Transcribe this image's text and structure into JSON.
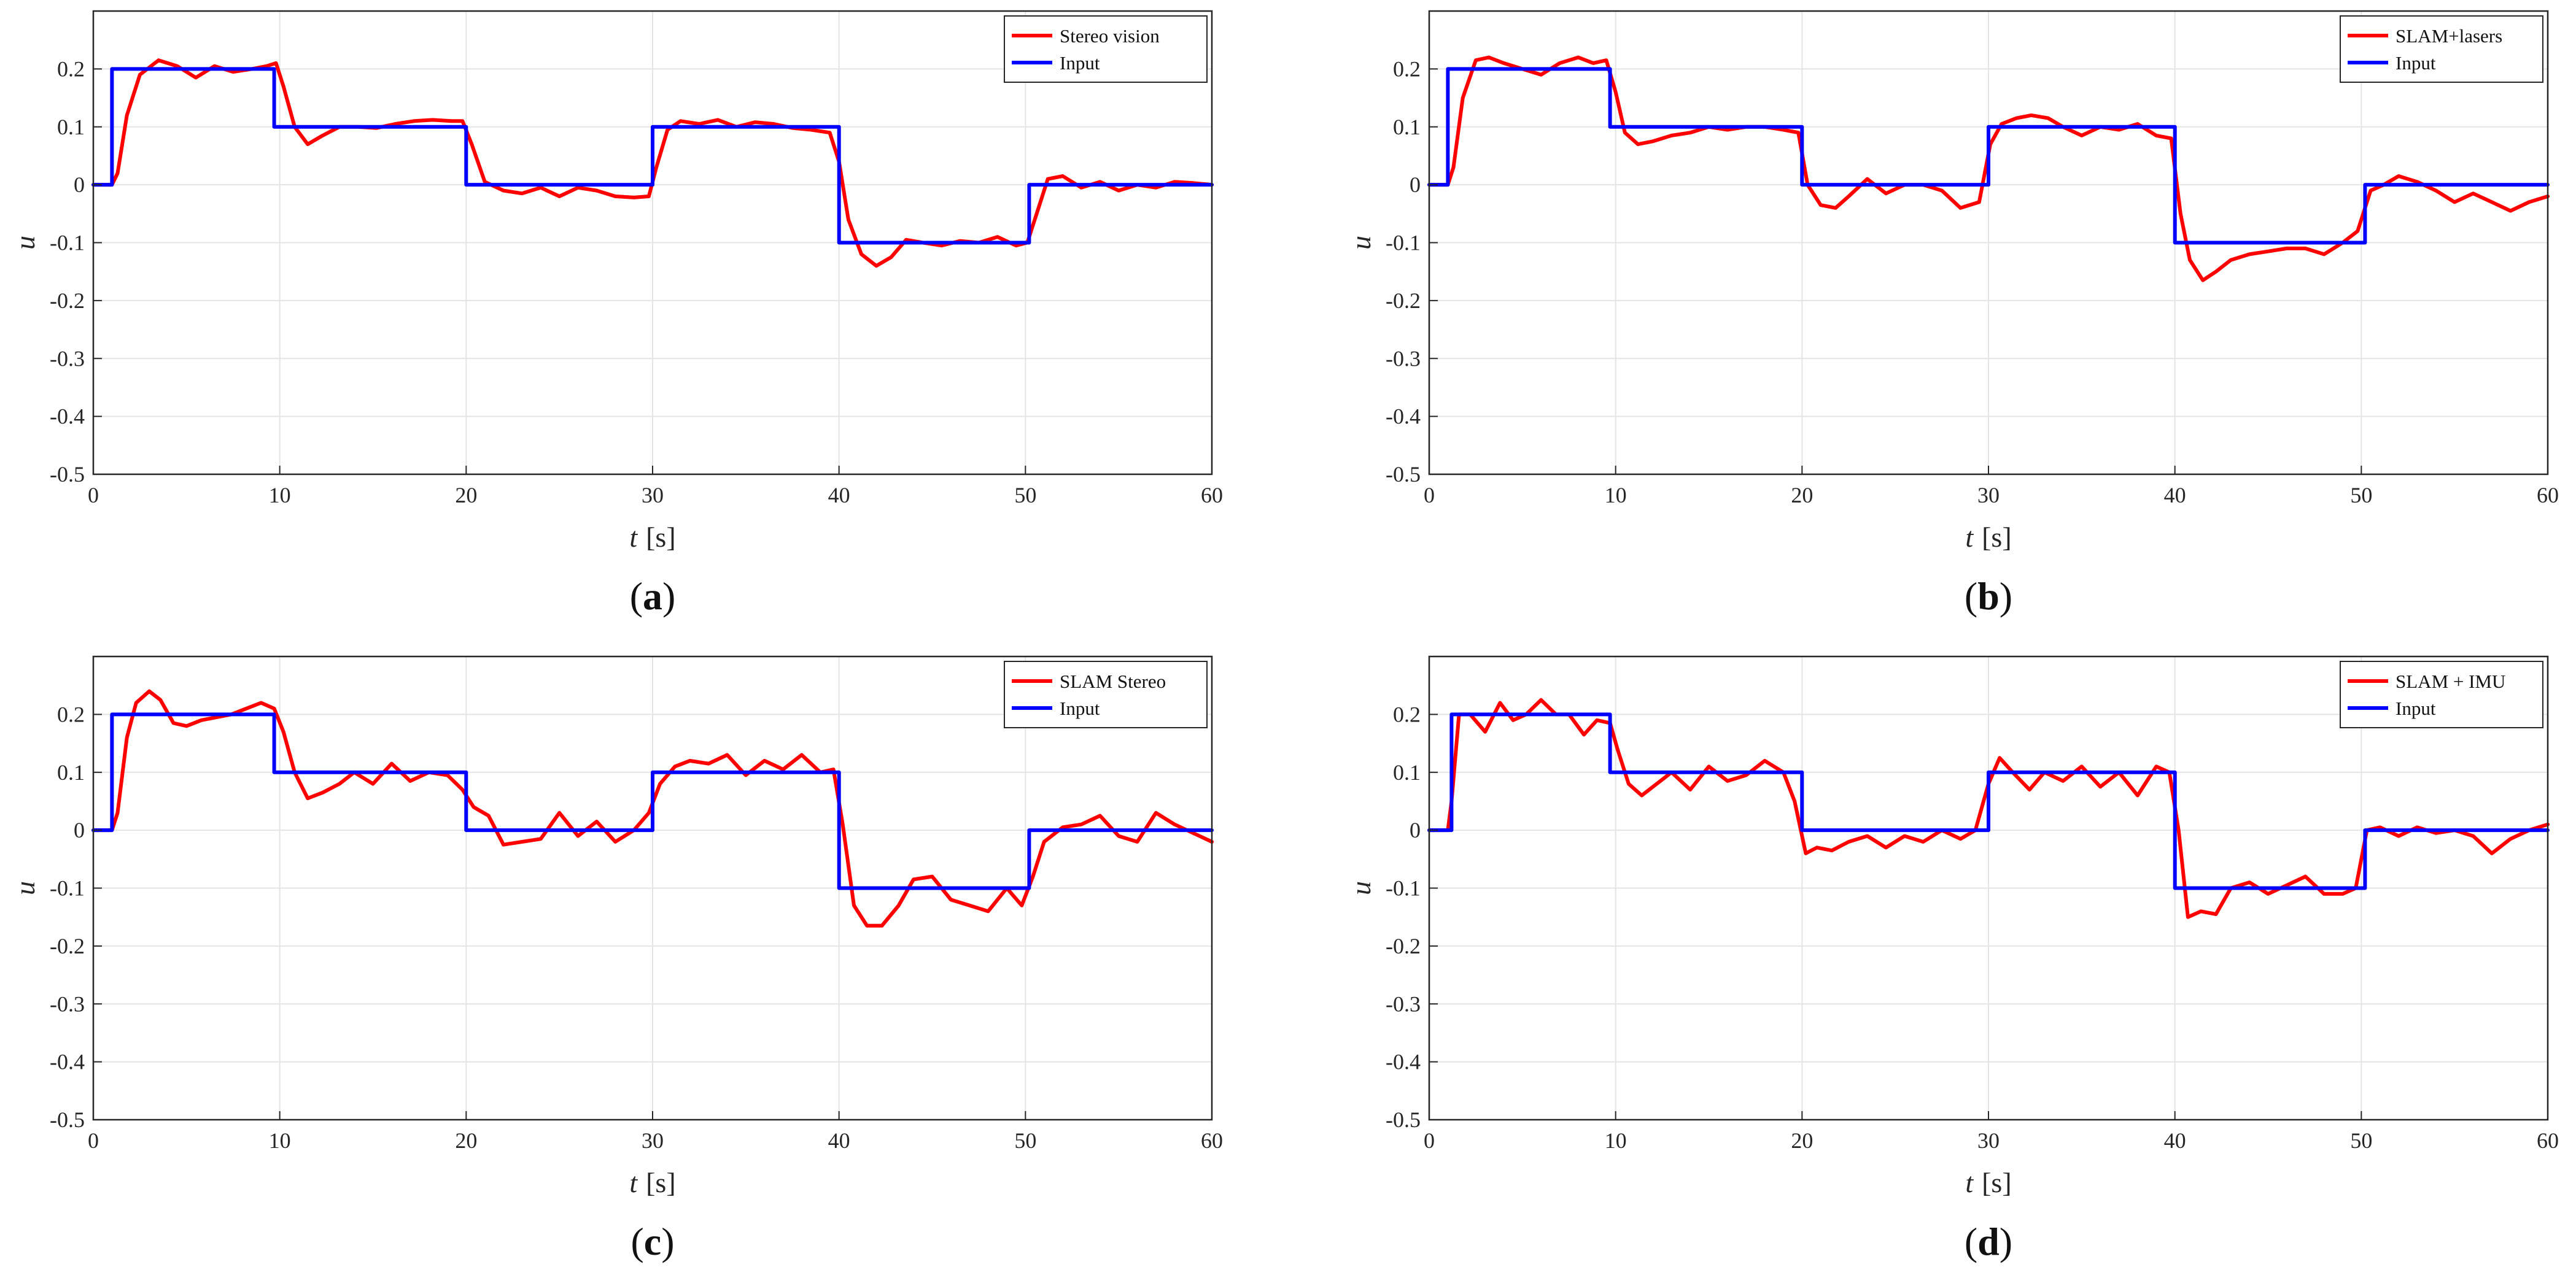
{
  "chart_data": [
    {
      "type": "line",
      "caption": {
        "open": "(",
        "letter": "a",
        "close": ")"
      },
      "xlabel": {
        "var": "t",
        "unit": "[s]"
      },
      "ylabel": "u",
      "xlim": [
        0,
        60
      ],
      "ylim": [
        -0.5,
        0.3
      ],
      "xticks": [
        0,
        10,
        20,
        30,
        40,
        50,
        60
      ],
      "xtick_labels": [
        "0",
        "10",
        "20",
        "30",
        "40",
        "50",
        "60"
      ],
      "yticks": [
        0.2,
        0.1,
        0,
        -0.1,
        -0.2,
        -0.3,
        -0.4,
        -0.5
      ],
      "ytick_labels": [
        "0.2",
        "0.1",
        "0",
        "-0.1",
        "-0.2",
        "-0.3",
        "-0.4",
        "-0.5"
      ],
      "grid": true,
      "legend_position": "top-right",
      "series": [
        {
          "name": "Stereo vision",
          "color": "#ff0000",
          "x": [
            0,
            1,
            1.3,
            1.8,
            2.5,
            3.5,
            4.5,
            5.5,
            6.5,
            7.5,
            8.5,
            9.3,
            9.8,
            10.2,
            10.8,
            11.5,
            12.3,
            13.2,
            14.2,
            15.2,
            16.2,
            17.2,
            18.2,
            19.2,
            19.8,
            20.3,
            21,
            22,
            23,
            24,
            25,
            26,
            27,
            28,
            29,
            29.8,
            30.2,
            30.8,
            31.5,
            32.5,
            33.5,
            34.5,
            35.5,
            36.5,
            37.5,
            38.5,
            39.5,
            40,
            40.5,
            41.2,
            42,
            42.8,
            43.6,
            44.5,
            45.5,
            46.5,
            47.5,
            48.5,
            49.5,
            50.1,
            50.6,
            51.2,
            52,
            53,
            54,
            55,
            56,
            57,
            58,
            59,
            60
          ],
          "y": [
            0,
            0,
            0.02,
            0.12,
            0.19,
            0.215,
            0.205,
            0.185,
            0.205,
            0.195,
            0.2,
            0.205,
            0.21,
            0.17,
            0.1,
            0.07,
            0.085,
            0.1,
            0.1,
            0.098,
            0.105,
            0.11,
            0.112,
            0.11,
            0.11,
            0.07,
            0.005,
            -0.01,
            -0.015,
            -0.005,
            -0.02,
            -0.005,
            -0.01,
            -0.02,
            -0.022,
            -0.02,
            0.03,
            0.095,
            0.11,
            0.105,
            0.112,
            0.1,
            0.108,
            0.105,
            0.098,
            0.095,
            0.09,
            0.04,
            -0.06,
            -0.12,
            -0.14,
            -0.125,
            -0.095,
            -0.1,
            -0.105,
            -0.097,
            -0.1,
            -0.09,
            -0.105,
            -0.1,
            -0.05,
            0.01,
            0.015,
            -0.005,
            0.005,
            -0.01,
            0.0,
            -0.005,
            0.005,
            0.003,
            0.0
          ]
        },
        {
          "name": "Input",
          "color": "#0000ff",
          "x": [
            0,
            1,
            1,
            9.7,
            9.7,
            20,
            20,
            30,
            30,
            40,
            40,
            50.2,
            50.2,
            60
          ],
          "y": [
            0,
            0,
            0.2,
            0.2,
            0.1,
            0.1,
            0,
            0,
            0.1,
            0.1,
            -0.1,
            -0.1,
            0,
            0
          ]
        }
      ]
    },
    {
      "type": "line",
      "caption": {
        "open": "(",
        "letter": "b",
        "close": ")"
      },
      "xlabel": {
        "var": "t",
        "unit": "[s]"
      },
      "ylabel": "u",
      "xlim": [
        0,
        60
      ],
      "ylim": [
        -0.5,
        0.3
      ],
      "xticks": [
        0,
        10,
        20,
        30,
        40,
        50,
        60
      ],
      "xtick_labels": [
        "0",
        "10",
        "20",
        "30",
        "40",
        "50",
        "60"
      ],
      "yticks": [
        0.2,
        0.1,
        0,
        -0.1,
        -0.2,
        -0.3,
        -0.4,
        -0.5
      ],
      "ytick_labels": [
        "0.2",
        "0.1",
        "0",
        "-0.1",
        "-0.2",
        "-0.3",
        "-0.4",
        "-0.5"
      ],
      "grid": true,
      "legend_position": "top-right",
      "series": [
        {
          "name": "SLAM+lasers",
          "color": "#ff0000",
          "x": [
            0,
            1,
            1.3,
            1.8,
            2.5,
            3.2,
            4,
            5,
            6,
            7,
            8,
            8.8,
            9.5,
            10,
            10.5,
            11.2,
            12,
            13,
            14,
            15,
            16,
            17,
            18,
            19,
            19.8,
            20.3,
            21,
            21.8,
            22.5,
            23.5,
            24.5,
            25.5,
            26.5,
            27.5,
            28.5,
            29.5,
            30.1,
            30.7,
            31.5,
            32.3,
            33.2,
            34,
            35,
            36,
            37,
            38,
            39,
            39.8,
            40.3,
            40.8,
            41.5,
            42.2,
            43,
            44,
            45,
            46,
            47,
            48,
            49,
            49.8,
            50.5,
            51.2,
            52,
            53,
            54,
            55,
            56,
            57,
            58,
            59,
            60
          ],
          "y": [
            0,
            0,
            0.03,
            0.15,
            0.215,
            0.22,
            0.21,
            0.2,
            0.19,
            0.21,
            0.22,
            0.21,
            0.215,
            0.16,
            0.09,
            0.07,
            0.075,
            0.085,
            0.09,
            0.1,
            0.095,
            0.1,
            0.1,
            0.095,
            0.09,
            0.0,
            -0.035,
            -0.04,
            -0.02,
            0.01,
            -0.015,
            0.0,
            0.0,
            -0.01,
            -0.04,
            -0.03,
            0.07,
            0.105,
            0.115,
            0.12,
            0.115,
            0.1,
            0.085,
            0.1,
            0.095,
            0.105,
            0.085,
            0.08,
            -0.05,
            -0.13,
            -0.165,
            -0.15,
            -0.13,
            -0.12,
            -0.115,
            -0.11,
            -0.11,
            -0.12,
            -0.1,
            -0.08,
            -0.01,
            0.0,
            0.015,
            0.005,
            -0.01,
            -0.03,
            -0.015,
            -0.03,
            -0.045,
            -0.03,
            -0.02
          ]
        },
        {
          "name": "Input",
          "color": "#0000ff",
          "x": [
            0,
            1,
            1,
            9.7,
            9.7,
            20,
            20,
            30,
            30,
            40,
            40,
            50.2,
            50.2,
            60
          ],
          "y": [
            0,
            0,
            0.2,
            0.2,
            0.1,
            0.1,
            0,
            0,
            0.1,
            0.1,
            -0.1,
            -0.1,
            0,
            0
          ]
        }
      ]
    },
    {
      "type": "line",
      "caption": {
        "open": "(",
        "letter": "c",
        "close": ")"
      },
      "xlabel": {
        "var": "t",
        "unit": "[s]"
      },
      "ylabel": "u",
      "xlim": [
        0,
        60
      ],
      "ylim": [
        -0.5,
        0.3
      ],
      "xticks": [
        0,
        10,
        20,
        30,
        40,
        50,
        60
      ],
      "xtick_labels": [
        "0",
        "10",
        "20",
        "30",
        "40",
        "50",
        "60"
      ],
      "yticks": [
        0.2,
        0.1,
        0,
        -0.1,
        -0.2,
        -0.3,
        -0.4,
        -0.5
      ],
      "ytick_labels": [
        "0.2",
        "0.1",
        "0",
        "-0.1",
        "-0.2",
        "-0.3",
        "-0.4",
        "-0.5"
      ],
      "grid": true,
      "legend_position": "top-right",
      "series": [
        {
          "name": "SLAM Stereo",
          "color": "#ff0000",
          "x": [
            0,
            1,
            1.3,
            1.8,
            2.3,
            3,
            3.6,
            4.3,
            5,
            5.8,
            6.6,
            7.4,
            8.2,
            9,
            9.7,
            10.2,
            10.8,
            11.5,
            12.3,
            13.2,
            14,
            15,
            16,
            17,
            18,
            19,
            19.8,
            20.4,
            21.2,
            22,
            23,
            24,
            25,
            26,
            27,
            28,
            29,
            29.8,
            30.4,
            31.2,
            32,
            33,
            34,
            35,
            36,
            37,
            38,
            39,
            39.7,
            40.2,
            40.8,
            41.5,
            42.3,
            43.2,
            44,
            45,
            46,
            47,
            48,
            49,
            49.8,
            50.4,
            51,
            52,
            53,
            54,
            55,
            56,
            57,
            58,
            59,
            60
          ],
          "y": [
            0,
            0,
            0.03,
            0.16,
            0.22,
            0.24,
            0.225,
            0.185,
            0.18,
            0.19,
            0.195,
            0.2,
            0.21,
            0.22,
            0.21,
            0.17,
            0.1,
            0.055,
            0.065,
            0.08,
            0.1,
            0.08,
            0.115,
            0.085,
            0.1,
            0.095,
            0.07,
            0.04,
            0.025,
            -0.025,
            -0.02,
            -0.015,
            0.03,
            -0.01,
            0.015,
            -0.02,
            0.0,
            0.03,
            0.08,
            0.11,
            0.12,
            0.115,
            0.13,
            0.095,
            0.12,
            0.105,
            0.13,
            0.1,
            0.105,
            0.01,
            -0.13,
            -0.165,
            -0.165,
            -0.13,
            -0.085,
            -0.08,
            -0.12,
            -0.13,
            -0.14,
            -0.1,
            -0.13,
            -0.08,
            -0.02,
            0.005,
            0.01,
            0.025,
            -0.01,
            -0.02,
            0.03,
            0.01,
            -0.005,
            -0.02
          ]
        },
        {
          "name": "Input",
          "color": "#0000ff",
          "x": [
            0,
            1,
            1,
            9.7,
            9.7,
            20,
            20,
            30,
            30,
            40,
            40,
            50.2,
            50.2,
            60
          ],
          "y": [
            0,
            0,
            0.2,
            0.2,
            0.1,
            0.1,
            0,
            0,
            0.1,
            0.1,
            -0.1,
            -0.1,
            0,
            0
          ]
        }
      ]
    },
    {
      "type": "line",
      "caption": {
        "open": "(",
        "letter": "d",
        "close": ")"
      },
      "xlabel": {
        "var": "t",
        "unit": "[s]"
      },
      "ylabel": "u",
      "xlim": [
        0,
        60
      ],
      "ylim": [
        -0.5,
        0.3
      ],
      "xticks": [
        0,
        10,
        20,
        30,
        40,
        50,
        60
      ],
      "xtick_labels": [
        "0",
        "10",
        "20",
        "30",
        "40",
        "50",
        "60"
      ],
      "yticks": [
        0.2,
        0.1,
        0,
        -0.1,
        -0.2,
        -0.3,
        -0.4,
        -0.5
      ],
      "ytick_labels": [
        "0.2",
        "0.1",
        "0",
        "-0.1",
        "-0.2",
        "-0.3",
        "-0.4",
        "-0.5"
      ],
      "grid": true,
      "legend_position": "top-right",
      "series": [
        {
          "name": "SLAM + IMU",
          "color": "#ff0000",
          "x": [
            0,
            1,
            1.2,
            1.6,
            2.2,
            3,
            3.8,
            4.5,
            5.2,
            6,
            6.8,
            7.5,
            8.3,
            9,
            9.7,
            10.1,
            10.7,
            11.4,
            12.2,
            13,
            14,
            15,
            16,
            17,
            18,
            19,
            19.6,
            20.2,
            20.8,
            21.6,
            22.5,
            23.5,
            24.5,
            25.5,
            26.5,
            27.5,
            28.5,
            29.3,
            30,
            30.6,
            31.3,
            32.2,
            33,
            34,
            35,
            36,
            37,
            38,
            39,
            39.7,
            40.2,
            40.7,
            41.4,
            42.2,
            43,
            44,
            45,
            46,
            47,
            48,
            49,
            49.7,
            50.3,
            51,
            52,
            53,
            54,
            55,
            56,
            57,
            58,
            59,
            60
          ],
          "y": [
            0,
            0,
            0.05,
            0.2,
            0.2,
            0.17,
            0.22,
            0.19,
            0.2,
            0.225,
            0.2,
            0.2,
            0.165,
            0.19,
            0.185,
            0.14,
            0.08,
            0.06,
            0.08,
            0.1,
            0.07,
            0.11,
            0.085,
            0.095,
            0.12,
            0.1,
            0.05,
            -0.04,
            -0.03,
            -0.035,
            -0.02,
            -0.01,
            -0.03,
            -0.01,
            -0.02,
            0.0,
            -0.015,
            0.0,
            0.08,
            0.125,
            0.1,
            0.07,
            0.1,
            0.085,
            0.11,
            0.075,
            0.1,
            0.06,
            0.11,
            0.1,
            0.0,
            -0.15,
            -0.14,
            -0.145,
            -0.1,
            -0.09,
            -0.11,
            -0.095,
            -0.08,
            -0.11,
            -0.11,
            -0.1,
            0.0,
            0.005,
            -0.01,
            0.005,
            -0.005,
            0.0,
            -0.01,
            -0.04,
            -0.015,
            0.0,
            0.01
          ]
        },
        {
          "name": "Input",
          "color": "#0000ff",
          "x": [
            0,
            1.2,
            1.2,
            9.7,
            9.7,
            20,
            20,
            30,
            30,
            40,
            40,
            50.2,
            50.2,
            60
          ],
          "y": [
            0,
            0,
            0.2,
            0.2,
            0.1,
            0.1,
            0,
            0,
            0.1,
            0.1,
            -0.1,
            -0.1,
            0,
            0
          ]
        }
      ]
    }
  ]
}
